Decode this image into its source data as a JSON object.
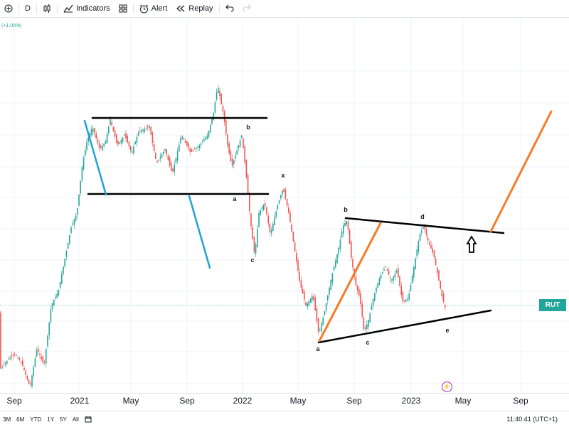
{
  "toolbar": {
    "interval": "D",
    "indicators_label": "Indicators",
    "alert_label": "Alert",
    "replay_label": "Replay"
  },
  "chart": {
    "change_text": "(+1.08%)",
    "symbol": "RUT",
    "wave_labels": [
      "b",
      "a",
      "c",
      "x",
      "b",
      "d",
      "c",
      "a",
      "e"
    ]
  },
  "x_axis": {
    "ticks": [
      "Sep",
      "2021",
      "May",
      "Sep",
      "2022",
      "May",
      "Sep",
      "2023",
      "May",
      "Sep"
    ]
  },
  "bottom_bar": {
    "ranges": [
      "3M",
      "6M",
      "YTD",
      "1Y",
      "5Y",
      "All"
    ],
    "clock": "11:40:41 (UTC+1)"
  },
  "colors": {
    "up": "#26a69a",
    "down": "#ef5350",
    "trend_black": "#000000",
    "trend_blue": "#1fa2d9",
    "trend_orange": "#f57c26",
    "rut_badge": "#22a59a"
  }
}
